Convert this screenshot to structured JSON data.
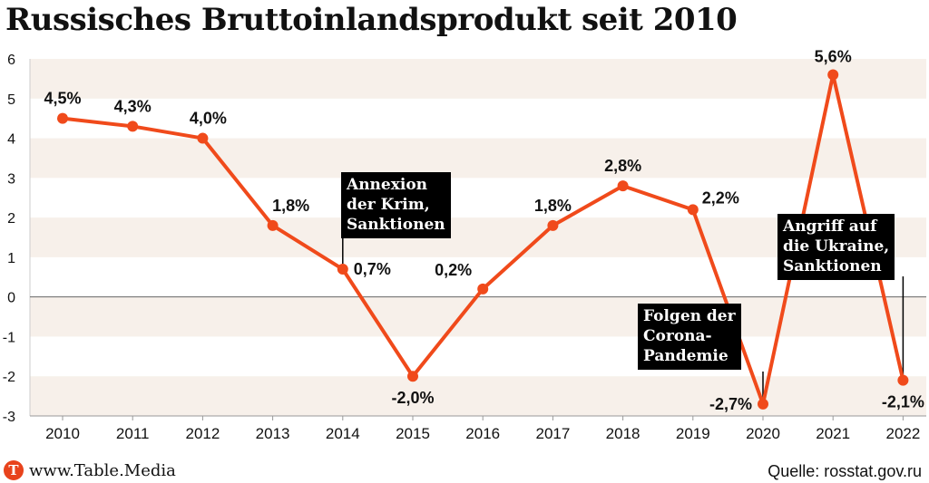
{
  "title": "Russisches Bruttoinlandsprodukt seit 2010",
  "brand": {
    "icon_letter": "T",
    "icon": "table-media-logo-icon",
    "text": "www.Table.Media"
  },
  "source": "Quelle: rosstat.gov.ru",
  "colors": {
    "line": "#f04a1b",
    "band": "#f7f0ea",
    "zero_line": "#666666",
    "annotation_bg": "#000000"
  },
  "annotations": [
    {
      "text": "Annexion\nder Krim,\nSanktionen",
      "x": "2014"
    },
    {
      "text": "Folgen der\nCorona-\nPandemie",
      "x": "2020"
    },
    {
      "text": "Angriff auf\ndie Ukraine,\nSanktionen",
      "x": "2022"
    }
  ],
  "chart_data": {
    "type": "line",
    "title": "Russisches Bruttoinlandsprodukt seit 2010",
    "categories": [
      "2010",
      "2011",
      "2012",
      "2013",
      "2014",
      "2015",
      "2016",
      "2017",
      "2018",
      "2019",
      "2020",
      "2021",
      "2022"
    ],
    "values": [
      4.5,
      4.3,
      4.0,
      1.8,
      0.7,
      -2.0,
      0.2,
      1.8,
      2.8,
      2.2,
      -2.7,
      5.6,
      -2.1
    ],
    "data_labels": [
      "4,5%",
      "4,3%",
      "4,0%",
      "1,8%",
      "0,7%",
      "-2,0%",
      "0,2%",
      "1,8%",
      "2,8%",
      "2,2%",
      "-2,7%",
      "5,6%",
      "-2,1%"
    ],
    "yticks": [
      "6",
      "5",
      "4",
      "3",
      "2",
      "1",
      "0",
      "-1",
      "-2",
      "-3"
    ],
    "ylim": [
      -3,
      6
    ],
    "grid": "horizontal bands",
    "legend": "none"
  }
}
